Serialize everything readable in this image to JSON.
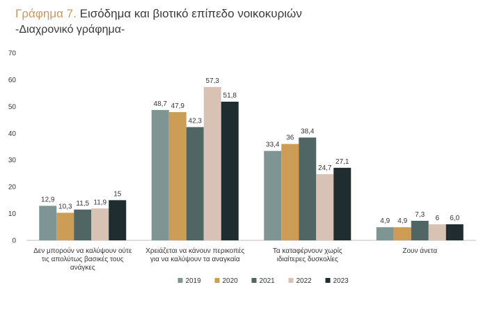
{
  "title_prefix": "Γράφημα 7.",
  "title_main": "Εισόδημα και βιοτικό επίπεδο νοικοκυριών",
  "subtitle": "-Διαχρονικό γράφημα-",
  "chart_data": {
    "type": "bar",
    "categories": [
      [
        "Δεν μπορούν να καλύψουν ούτε",
        "τις απολύτως βασικές τους",
        "ανάγκες"
      ],
      [
        "Χρειάζεται να κάνουν περικοπές",
        "για να καλύψουν τα αναγκαία"
      ],
      [
        "Τα καταφέρνουν χωρίς",
        "ιδιαίτερες δυσκολίες"
      ],
      [
        "Ζουν άνετα"
      ]
    ],
    "series": [
      {
        "name": "2019",
        "color": "#7f9594",
        "values": [
          12.9,
          48.7,
          33.4,
          4.9
        ],
        "labels": [
          "12,9",
          "48,7",
          "33,4",
          "4,9"
        ]
      },
      {
        "name": "2020",
        "color": "#cd9c55",
        "values": [
          10.3,
          47.9,
          36,
          4.9
        ],
        "labels": [
          "10,3",
          "47,9",
          "36",
          "4,9"
        ]
      },
      {
        "name": "2021",
        "color": "#4f6664",
        "values": [
          11.5,
          42.3,
          38.4,
          7.3
        ],
        "labels": [
          "11,5",
          "42,3",
          "38,4",
          "7,3"
        ]
      },
      {
        "name": "2022",
        "color": "#d7c2b3",
        "values": [
          11.9,
          57.3,
          24.7,
          6
        ],
        "labels": [
          "11,9",
          "57,3",
          "24,7",
          "6"
        ]
      },
      {
        "name": "2023",
        "color": "#1f2d30",
        "values": [
          15,
          51.8,
          27.1,
          6.0
        ],
        "labels": [
          "15",
          "51,8",
          "27,1",
          "6,0"
        ]
      }
    ],
    "yticks": [
      "0",
      "10",
      "20",
      "30",
      "40",
      "50",
      "60",
      "70"
    ],
    "ylim": [
      0,
      70
    ],
    "grid": false,
    "legend_position": "bottom"
  }
}
